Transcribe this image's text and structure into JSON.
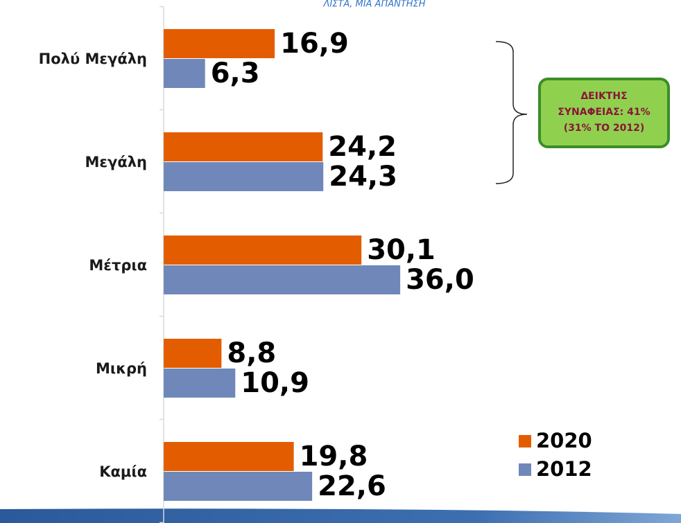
{
  "chart_data": {
    "type": "hbar",
    "title": "ΛΙΣΤΑ, ΜΙΑ ΑΠΑΝΤΗΣΗ",
    "categories": [
      "Πολύ Μεγάλη",
      "Μεγάλη",
      "Μέτρια",
      "Μικρή",
      "Καμία"
    ],
    "series": [
      {
        "name": "2020",
        "color": "#e35d00",
        "values": [
          16.9,
          24.2,
          30.1,
          8.8,
          19.8
        ],
        "value_labels": [
          "16,9",
          "24,2",
          "30,1",
          "8,8",
          "19,8"
        ]
      },
      {
        "name": "2012",
        "color": "#7088b9",
        "values": [
          6.3,
          24.3,
          36.0,
          10.9,
          22.6
        ],
        "value_labels": [
          "6,3",
          "24,3",
          "36,0",
          "10,9",
          "22,6"
        ]
      }
    ],
    "xlim": [
      0,
      40
    ],
    "annotation": [
      "ΔΕΙΚΤΗΣ",
      "ΣΥΝΑΦΕΙΑΣ: 41%",
      "(31% ΤΟ 2012)"
    ],
    "legend": "bottom-right"
  }
}
